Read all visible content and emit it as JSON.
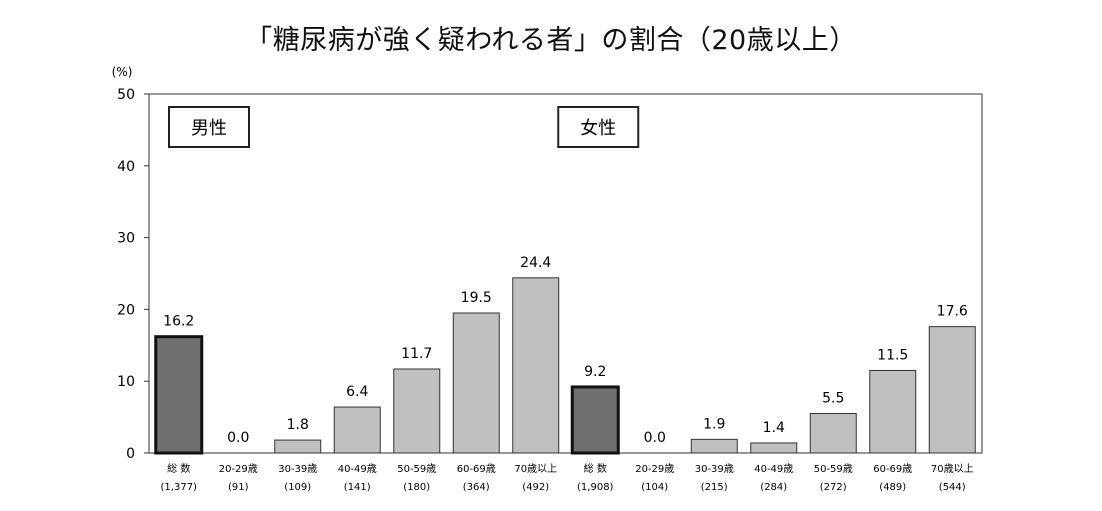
{
  "chart_data": {
    "type": "bar",
    "title": "「糖尿病が強く疑われる者」の割合（20歳以上）",
    "ylabel": "(%)",
    "ylim": [
      0,
      50
    ],
    "yticks": [
      0,
      10,
      20,
      30,
      40,
      50
    ],
    "grid": false,
    "panels": [
      {
        "label": "男性",
        "start": 0
      },
      {
        "label": "女性",
        "start": 7
      }
    ],
    "categories": [
      {
        "label": "総 数",
        "n": "(1,377)",
        "value": 16.2,
        "total": true
      },
      {
        "label": "20-29歳",
        "n": "(91)",
        "value": 0.0,
        "total": false
      },
      {
        "label": "30-39歳",
        "n": "(109)",
        "value": 1.8,
        "total": false
      },
      {
        "label": "40-49歳",
        "n": "(141)",
        "value": 6.4,
        "total": false
      },
      {
        "label": "50-59歳",
        "n": "(180)",
        "value": 11.7,
        "total": false
      },
      {
        "label": "60-69歳",
        "n": "(364)",
        "value": 19.5,
        "total": false
      },
      {
        "label": "70歳以上",
        "n": "(492)",
        "value": 24.4,
        "total": false
      },
      {
        "label": "総 数",
        "n": "(1,908)",
        "value": 9.2,
        "total": true
      },
      {
        "label": "20-29歳",
        "n": "(104)",
        "value": 0.0,
        "total": false
      },
      {
        "label": "30-39歳",
        "n": "(215)",
        "value": 1.9,
        "total": false
      },
      {
        "label": "40-49歳",
        "n": "(284)",
        "value": 1.4,
        "total": false
      },
      {
        "label": "50-59歳",
        "n": "(272)",
        "value": 5.5,
        "total": false
      },
      {
        "label": "60-69歳",
        "n": "(489)",
        "value": 11.5,
        "total": false
      },
      {
        "label": "70歳以上",
        "n": "(544)",
        "value": 17.6,
        "total": false
      }
    ],
    "colors": {
      "total": "#707070",
      "age": "#c0c0c0"
    }
  }
}
